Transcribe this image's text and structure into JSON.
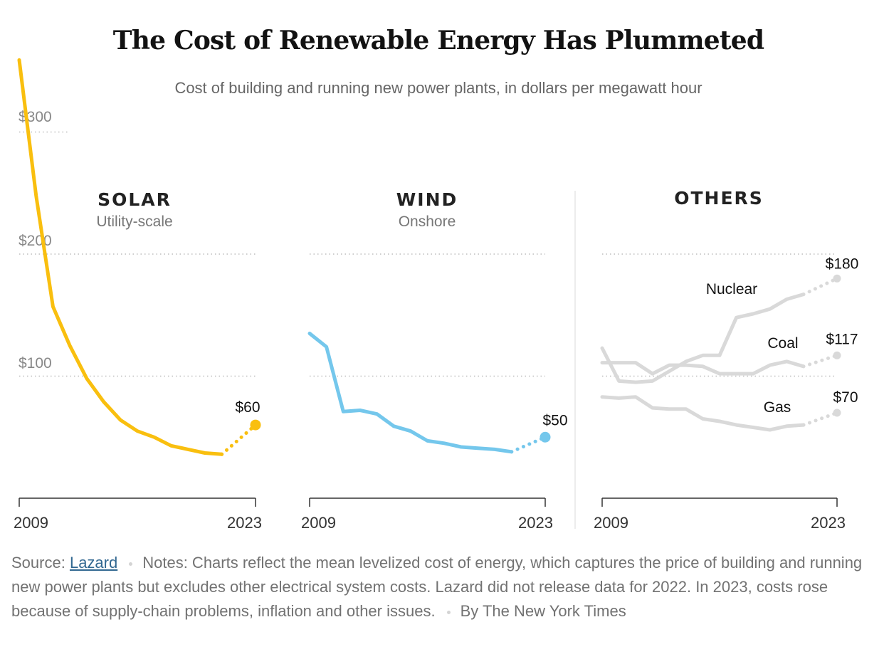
{
  "header": {
    "title": "The Cost of Renewable Energy Has Plummeted",
    "subtitle": "Cost of building and running new power plants, in dollars per megawatt hour"
  },
  "colors": {
    "solar": "#f9bf0f",
    "wind": "#74c7ec",
    "others": "#d9d9d9",
    "axis": "#333333",
    "grid": "#bdbdbd"
  },
  "y_ticks": [
    {
      "value": 300,
      "label": "$300"
    },
    {
      "value": 200,
      "label": "$200"
    },
    {
      "value": 100,
      "label": "$100"
    }
  ],
  "chart_data": [
    {
      "type": "line",
      "title": "SOLAR",
      "subtitle": "Utility-scale",
      "xlim": [
        2009,
        2023
      ],
      "x_tick_labels": [
        "2009",
        "2023"
      ],
      "ylim": [
        0,
        359
      ],
      "series": [
        {
          "key": "solar",
          "x": [
            2009,
            2010,
            2011,
            2012,
            2013,
            2014,
            2015,
            2016,
            2017,
            2018,
            2019,
            2020,
            2021
          ],
          "values": [
            359,
            248,
            157,
            125,
            98,
            79,
            64,
            55,
            50,
            43,
            40,
            37,
            36
          ],
          "projection": {
            "x": [
              2021,
              2023
            ],
            "values": [
              36,
              60
            ]
          },
          "end_label": "$60"
        }
      ]
    },
    {
      "type": "line",
      "title": "WIND",
      "subtitle": "Onshore",
      "xlim": [
        2009,
        2023
      ],
      "x_tick_labels": [
        "2009",
        "2023"
      ],
      "ylim": [
        0,
        200
      ],
      "series": [
        {
          "key": "wind",
          "x": [
            2009,
            2010,
            2011,
            2012,
            2013,
            2014,
            2015,
            2016,
            2017,
            2018,
            2019,
            2020,
            2021
          ],
          "values": [
            135,
            124,
            71,
            72,
            69,
            59,
            55,
            47,
            45,
            42,
            41,
            40,
            38
          ],
          "projection": {
            "x": [
              2021,
              2023
            ],
            "values": [
              38,
              50
            ]
          },
          "end_label": "$50"
        }
      ]
    },
    {
      "type": "line",
      "title": "OTHERS",
      "xlim": [
        2009,
        2023
      ],
      "x_tick_labels": [
        "2009",
        "2023"
      ],
      "ylim": [
        0,
        200
      ],
      "series": [
        {
          "key": "nuclear",
          "name": "Nuclear",
          "x": [
            2009,
            2010,
            2011,
            2012,
            2013,
            2014,
            2015,
            2016,
            2017,
            2018,
            2019,
            2020,
            2021
          ],
          "values": [
            123,
            96,
            95,
            96,
            104,
            112,
            117,
            117,
            148,
            151,
            155,
            163,
            167
          ],
          "projection": {
            "x": [
              2021,
              2023
            ],
            "values": [
              167,
              180
            ]
          },
          "end_label": "$180"
        },
        {
          "key": "coal",
          "name": "Coal",
          "x": [
            2009,
            2010,
            2011,
            2012,
            2013,
            2014,
            2015,
            2016,
            2017,
            2018,
            2019,
            2020,
            2021
          ],
          "values": [
            111,
            111,
            111,
            102,
            109,
            109,
            108,
            102,
            102,
            102,
            109,
            112,
            108
          ],
          "projection": {
            "x": [
              2021,
              2023
            ],
            "values": [
              108,
              117
            ]
          },
          "end_label": "$117"
        },
        {
          "key": "gas",
          "name": "Gas",
          "x": [
            2009,
            2010,
            2011,
            2012,
            2013,
            2014,
            2015,
            2016,
            2017,
            2018,
            2019,
            2020,
            2021
          ],
          "values": [
            83,
            82,
            83,
            74,
            73,
            73,
            65,
            63,
            60,
            58,
            56,
            59,
            60
          ],
          "projection": {
            "x": [
              2021,
              2023
            ],
            "values": [
              60,
              70
            ]
          },
          "end_label": "$70"
        }
      ]
    }
  ],
  "footer": {
    "source_label": "Source:",
    "source_link": "Lazard",
    "notes": "Notes: Charts reflect the mean levelized cost of energy, which captures the price of building and running new power plants but excludes other electrical system costs. Lazard did not release data for 2022. In 2023, costs rose because of supply-chain problems, inflation and other issues.",
    "credit": "By The New York Times"
  }
}
